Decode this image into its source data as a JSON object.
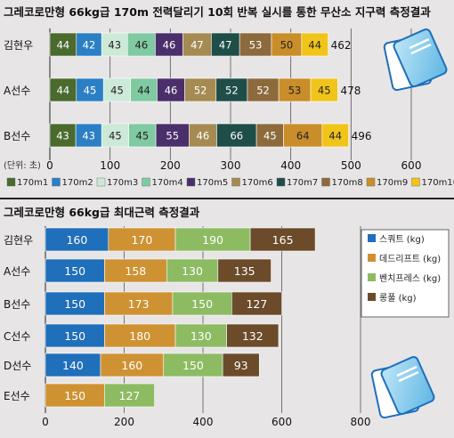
{
  "chart_data": [
    {
      "type": "bar",
      "stacked": true,
      "orientation": "horizontal",
      "title": "그레코로만형 66kg급 170m 전력달리기 10회 반복 실시를 통한 무산소 지구력 측정결과",
      "unit_label": "(단위: 초)",
      "categories": [
        "김현우",
        "A선수",
        "B선수"
      ],
      "totals": [
        "462",
        "478",
        "496"
      ],
      "xlim": [
        0,
        600
      ],
      "ticks": [
        0,
        100,
        200,
        300,
        400,
        500,
        600
      ],
      "grid": true,
      "legend_position": "bottom",
      "series": [
        {
          "name": "170m1",
          "color": "#4a6a2e",
          "text_color": "#ffffff",
          "values": [
            44,
            44,
            43
          ]
        },
        {
          "name": "170m2",
          "color": "#2b7fc4",
          "text_color": "#ffffff",
          "values": [
            42,
            45,
            43
          ]
        },
        {
          "name": "170m3",
          "color": "#cde9d8",
          "text_color": "#222222",
          "values": [
            43,
            45,
            45
          ]
        },
        {
          "name": "170m4",
          "color": "#7fcaa1",
          "text_color": "#222222",
          "values": [
            46,
            44,
            45
          ]
        },
        {
          "name": "170m5",
          "color": "#4b2f6b",
          "text_color": "#ffffff",
          "values": [
            46,
            46,
            55
          ]
        },
        {
          "name": "170m6",
          "color": "#a58b52",
          "text_color": "#ffffff",
          "values": [
            47,
            52,
            46
          ]
        },
        {
          "name": "170m7",
          "color": "#1f4d48",
          "text_color": "#ffffff",
          "values": [
            47,
            52,
            66
          ]
        },
        {
          "name": "170m8",
          "color": "#8c6a3c",
          "text_color": "#ffffff",
          "values": [
            53,
            52,
            45
          ]
        },
        {
          "name": "170m9",
          "color": "#c98e2a",
          "text_color": "#222222",
          "values": [
            50,
            53,
            64
          ]
        },
        {
          "name": "170m10",
          "color": "#f0c419",
          "text_color": "#222222",
          "values": [
            44,
            45,
            44
          ]
        }
      ]
    },
    {
      "type": "bar",
      "stacked": true,
      "orientation": "horizontal",
      "title": "그레코로만형 66kg급 최대근력 측정결과",
      "categories": [
        "김현우",
        "A선수",
        "B선수",
        "C선수",
        "D선수",
        "E선수"
      ],
      "xlim": [
        0,
        800
      ],
      "ticks": [
        0,
        200,
        400,
        600,
        800
      ],
      "grid": true,
      "legend_position": "right",
      "series": [
        {
          "name": "스쿼트 (kg)",
          "color": "#1f6fba",
          "text_color": "#ffffff",
          "values": [
            160,
            150,
            150,
            150,
            140,
            null
          ]
        },
        {
          "name": "데드리프트 (kg)",
          "color": "#cf9233",
          "text_color": "#ffffff",
          "values": [
            170,
            158,
            173,
            180,
            160,
            150
          ]
        },
        {
          "name": "벤치프레스 (kg)",
          "color": "#8dbb62",
          "text_color": "#ffffff",
          "values": [
            190,
            130,
            150,
            130,
            150,
            127
          ]
        },
        {
          "name": "롱풀 (kg)",
          "color": "#6b4b2a",
          "text_color": "#ffffff",
          "values": [
            165,
            135,
            127,
            132,
            93,
            null
          ]
        }
      ]
    }
  ],
  "colors": {
    "background": "#e7e5e6",
    "panel": "#ffffff",
    "grid": "#555555",
    "divider": "#222222"
  }
}
